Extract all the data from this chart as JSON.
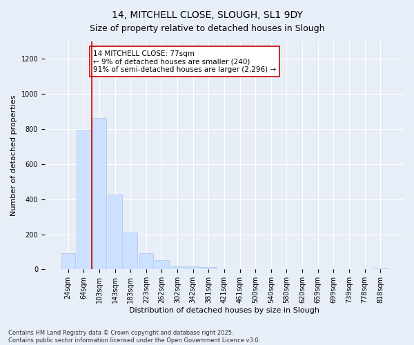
{
  "title1": "14, MITCHELL CLOSE, SLOUGH, SL1 9DY",
  "title2": "Size of property relative to detached houses in Slough",
  "xlabel": "Distribution of detached houses by size in Slough",
  "ylabel": "Number of detached properties",
  "categories": [
    "24sqm",
    "64sqm",
    "103sqm",
    "143sqm",
    "183sqm",
    "223sqm",
    "262sqm",
    "302sqm",
    "342sqm",
    "381sqm",
    "421sqm",
    "461sqm",
    "500sqm",
    "540sqm",
    "580sqm",
    "620sqm",
    "659sqm",
    "699sqm",
    "739sqm",
    "778sqm",
    "818sqm"
  ],
  "values": [
    90,
    795,
    865,
    425,
    210,
    90,
    52,
    18,
    18,
    12,
    0,
    0,
    0,
    0,
    0,
    0,
    0,
    0,
    0,
    0,
    5
  ],
  "bar_color": "#cce0ff",
  "bar_edge_color": "#aac4e8",
  "vline_x": 1.5,
  "vline_color": "#cc0000",
  "annotation_text": "14 MITCHELL CLOSE: 77sqm\n← 9% of detached houses are smaller (240)\n91% of semi-detached houses are larger (2,296) →",
  "annotation_box_facecolor": "#ffffff",
  "annotation_box_edgecolor": "#cc0000",
  "ylim": [
    0,
    1300
  ],
  "yticks": [
    0,
    200,
    400,
    600,
    800,
    1000,
    1200
  ],
  "bg_color": "#e8eef8",
  "plot_bg_color": "#e8eef8",
  "grid_color": "#ffffff",
  "footer_text": "Contains HM Land Registry data © Crown copyright and database right 2025.\nContains public sector information licensed under the Open Government Licence v3.0.",
  "title1_fontsize": 10,
  "title2_fontsize": 9,
  "xlabel_fontsize": 8,
  "ylabel_fontsize": 8,
  "tick_fontsize": 7,
  "annotation_fontsize": 7.5,
  "footer_fontsize": 6
}
